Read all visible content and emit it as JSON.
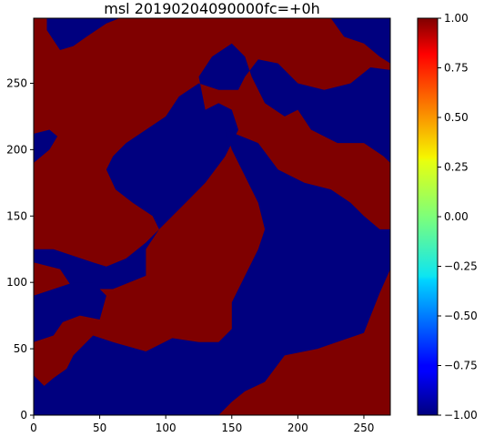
{
  "chart_data": {
    "type": "heatmap",
    "title": "msl 20190204090000fc=+0h",
    "xlabel": "",
    "ylabel": "",
    "xlim": [
      0,
      270
    ],
    "ylim": [
      0,
      299
    ],
    "x_ticks": [
      0,
      50,
      100,
      150,
      200,
      250
    ],
    "x_tick_labels": [
      "0",
      "50",
      "100",
      "150",
      "200",
      "250"
    ],
    "y_ticks": [
      0,
      50,
      100,
      150,
      200,
      250
    ],
    "y_tick_labels": [
      "0",
      "50",
      "100",
      "150",
      "200",
      "250"
    ],
    "colormap": "jet",
    "value_range": [
      -1.0,
      1.0
    ],
    "colorbar_ticks": [
      1.0,
      0.75,
      0.5,
      0.25,
      0.0,
      -0.25,
      -0.5,
      -0.75,
      -1.0
    ],
    "colorbar_tick_labels": [
      "1.00",
      "0.75",
      "0.50",
      "0.25",
      "0.00",
      "−0.25",
      "−0.50",
      "−0.75",
      "−1.00"
    ],
    "regions": [
      {
        "value": 1.0,
        "color": "#7f0000",
        "description": "high (1.00) background field"
      },
      {
        "value": -1.0,
        "color": "#00007f",
        "description": "low (-1.00) areas"
      }
    ],
    "low_value_polygons": [
      [
        [
          0,
          115
        ],
        [
          20,
          110
        ],
        [
          30,
          95
        ],
        [
          60,
          95
        ],
        [
          85,
          105
        ],
        [
          85,
          125
        ],
        [
          95,
          140
        ],
        [
          115,
          160
        ],
        [
          130,
          175
        ],
        [
          145,
          195
        ],
        [
          155,
          215
        ],
        [
          150,
          230
        ],
        [
          140,
          235
        ],
        [
          130,
          230
        ],
        [
          125,
          255
        ],
        [
          135,
          270
        ],
        [
          150,
          280
        ],
        [
          160,
          270
        ],
        [
          165,
          255
        ],
        [
          175,
          235
        ],
        [
          190,
          225
        ],
        [
          200,
          230
        ],
        [
          210,
          215
        ],
        [
          230,
          205
        ],
        [
          250,
          205
        ],
        [
          265,
          195
        ],
        [
          270,
          190
        ],
        [
          270,
          260
        ],
        [
          255,
          262
        ],
        [
          240,
          250
        ],
        [
          220,
          245
        ],
        [
          200,
          250
        ],
        [
          185,
          265
        ],
        [
          170,
          268
        ],
        [
          160,
          255
        ],
        [
          155,
          245
        ],
        [
          140,
          245
        ],
        [
          125,
          250
        ],
        [
          110,
          240
        ],
        [
          100,
          225
        ],
        [
          85,
          215
        ],
        [
          70,
          205
        ],
        [
          60,
          195
        ],
        [
          55,
          185
        ],
        [
          62,
          170
        ],
        [
          75,
          160
        ],
        [
          90,
          150
        ],
        [
          95,
          140
        ],
        [
          85,
          130
        ],
        [
          70,
          118
        ],
        [
          55,
          112
        ],
        [
          45,
          115
        ],
        [
          30,
          120
        ],
        [
          15,
          125
        ],
        [
          0,
          125
        ]
      ],
      [
        [
          145,
          215
        ],
        [
          170,
          205
        ],
        [
          185,
          185
        ],
        [
          205,
          175
        ],
        [
          225,
          170
        ],
        [
          240,
          160
        ],
        [
          250,
          150
        ],
        [
          262,
          140
        ],
        [
          270,
          140
        ],
        [
          270,
          110
        ],
        [
          262,
          92
        ],
        [
          250,
          62
        ],
        [
          215,
          50
        ],
        [
          190,
          45
        ],
        [
          175,
          25
        ],
        [
          160,
          18
        ],
        [
          150,
          10
        ],
        [
          140,
          0
        ],
        [
          0,
          0
        ],
        [
          0,
          30
        ],
        [
          8,
          22
        ],
        [
          15,
          28
        ],
        [
          25,
          35
        ],
        [
          30,
          45
        ],
        [
          45,
          60
        ],
        [
          60,
          55
        ],
        [
          85,
          48
        ],
        [
          105,
          58
        ],
        [
          125,
          55
        ],
        [
          140,
          55
        ],
        [
          150,
          65
        ],
        [
          150,
          85
        ],
        [
          160,
          105
        ],
        [
          170,
          125
        ],
        [
          175,
          140
        ],
        [
          170,
          160
        ],
        [
          160,
          180
        ],
        [
          150,
          200
        ]
      ],
      [
        [
          0,
          55
        ],
        [
          15,
          60
        ],
        [
          22,
          70
        ],
        [
          35,
          75
        ],
        [
          50,
          72
        ],
        [
          55,
          90
        ],
        [
          45,
          100
        ],
        [
          30,
          100
        ],
        [
          15,
          95
        ],
        [
          0,
          90
        ]
      ],
      [
        [
          0,
          190
        ],
        [
          12,
          200
        ],
        [
          18,
          210
        ],
        [
          12,
          215
        ],
        [
          0,
          212
        ]
      ],
      [
        [
          10,
          290
        ],
        [
          20,
          275
        ],
        [
          30,
          278
        ],
        [
          40,
          285
        ],
        [
          55,
          295
        ],
        [
          65,
          299
        ],
        [
          10,
          299
        ]
      ],
      [
        [
          225,
          299
        ],
        [
          235,
          285
        ],
        [
          250,
          280
        ],
        [
          262,
          270
        ],
        [
          270,
          265
        ],
        [
          270,
          299
        ]
      ]
    ]
  }
}
